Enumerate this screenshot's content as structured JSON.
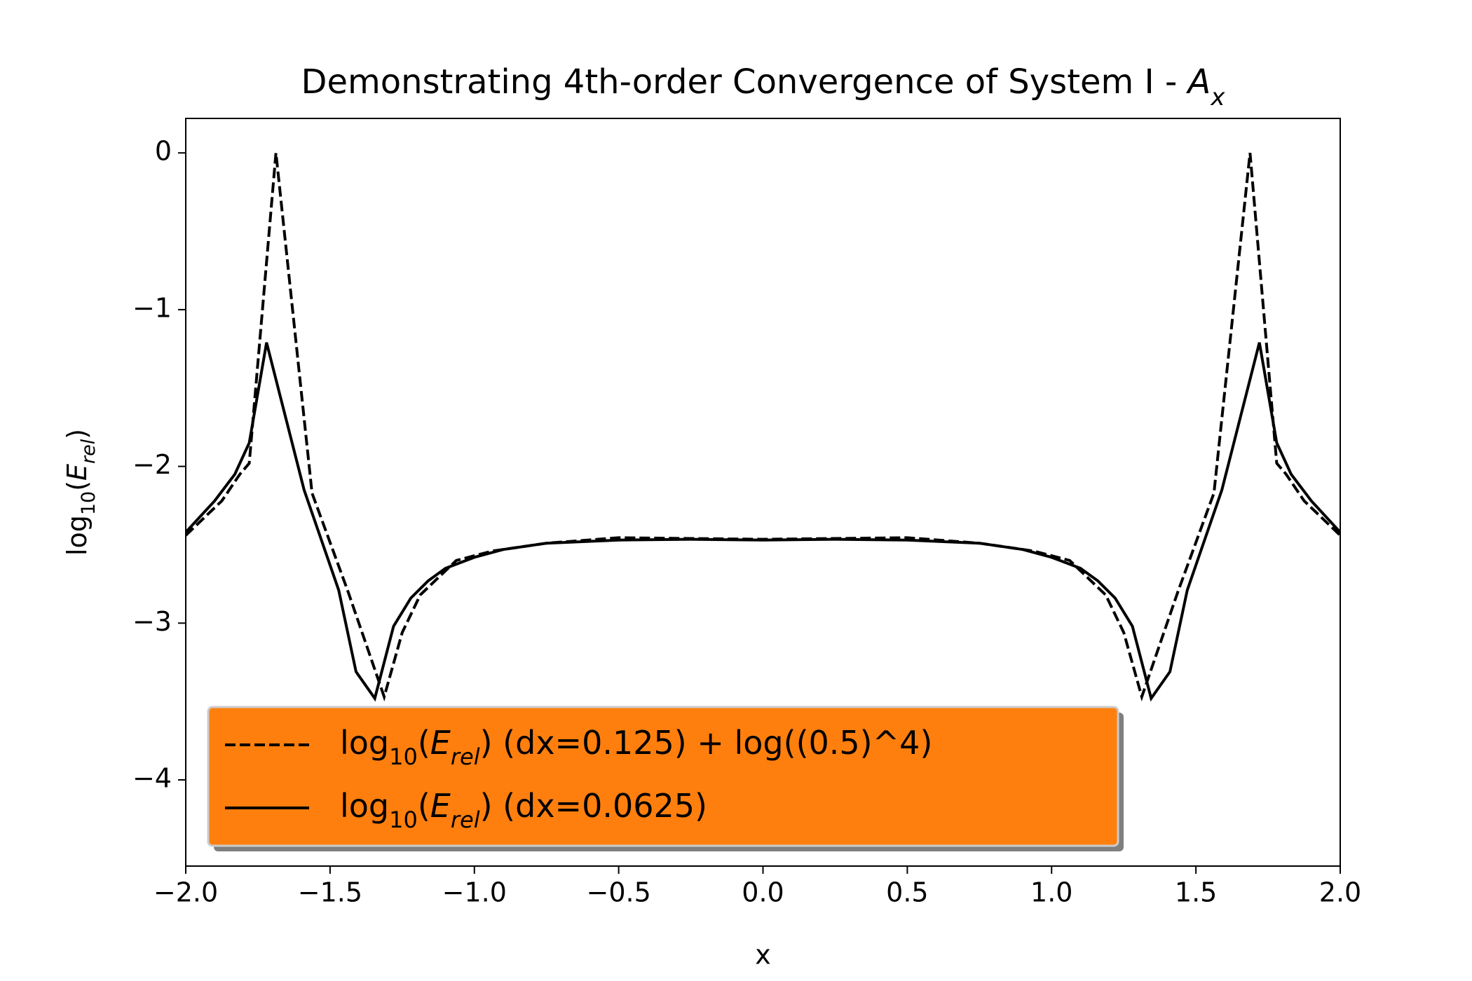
{
  "chart_data": {
    "type": "line",
    "title": [
      "Demonstrating 4th-order Convergence of System I - ",
      {
        "text": "A",
        "style": "italic"
      },
      {
        "text": "x",
        "style": "sub-italic"
      }
    ],
    "xlabel": "x",
    "ylabel": [
      "log",
      {
        "text": "10",
        "style": "sub"
      },
      "(",
      {
        "text": "E",
        "style": "italic"
      },
      {
        "text": "rel",
        "style": "sub-italic"
      },
      ")"
    ],
    "xlim": [
      -2,
      2
    ],
    "ylim": [
      -4.55,
      0.22
    ],
    "xticks": [
      {
        "value": -2.0,
        "label": "−2.0"
      },
      {
        "value": -1.5,
        "label": "−1.5"
      },
      {
        "value": -1.0,
        "label": "−1.0"
      },
      {
        "value": -0.5,
        "label": "−0.5"
      },
      {
        "value": 0,
        "label": "0.0"
      },
      {
        "value": 0.5,
        "label": "0.5"
      },
      {
        "value": 1.0,
        "label": "1.0"
      },
      {
        "value": 1.5,
        "label": "1.5"
      },
      {
        "value": 2.0,
        "label": "2.0"
      }
    ],
    "yticks": [
      0,
      {
        "value": -1,
        "label": "−1"
      },
      {
        "value": -2,
        "label": "−2"
      },
      {
        "value": -3,
        "label": "−3"
      },
      {
        "value": -4,
        "label": "−4"
      }
    ],
    "legend": "lower left",
    "legend_color": "#ff7f0e",
    "series": [
      {
        "name": [
          "log",
          {
            "text": "10",
            "style": "sub"
          },
          "(",
          {
            "text": "E",
            "style": "italic"
          },
          {
            "text": "rel",
            "style": "sub-italic"
          },
          ") (dx=0.125) + log((0.5)^4)"
        ],
        "color": "#000000",
        "dash": true,
        "x": [
          -2,
          -1.875,
          -1.8125,
          -1.78,
          -1.6875,
          -1.5625,
          -1.4375,
          -1.3125,
          -1.25,
          -1.1875,
          -1.0625,
          -0.9375,
          -0.75,
          -0.5,
          -0.25,
          0,
          0.25,
          0.5,
          0.75,
          0.9375,
          1.0625,
          1.1875,
          1.25,
          1.3125,
          1.4375,
          1.5625,
          1.6875,
          1.78,
          1.8125,
          1.875,
          2
        ],
        "values": [
          -2.44,
          -2.22,
          -2.05,
          -1.98,
          0.0,
          -2.17,
          -2.8,
          -3.47,
          -3.06,
          -2.82,
          -2.6,
          -2.54,
          -2.49,
          -2.455,
          -2.46,
          -2.465,
          -2.46,
          -2.455,
          -2.49,
          -2.54,
          -2.6,
          -2.82,
          -3.06,
          -3.47,
          -2.8,
          -2.17,
          0.0,
          -1.98,
          -2.05,
          -2.22,
          -2.44
        ]
      },
      {
        "name": [
          "log",
          {
            "text": "10",
            "style": "sub"
          },
          "(",
          {
            "text": "E",
            "style": "italic"
          },
          {
            "text": "rel",
            "style": "sub-italic"
          },
          ") (dx=0.0625)"
        ],
        "color": "#000000",
        "dash": false,
        "x": [
          -2,
          -1.9,
          -1.83,
          -1.78,
          -1.72,
          -1.59,
          -1.47,
          -1.41,
          -1.345,
          -1.28,
          -1.22,
          -1.16,
          -1.1,
          -1,
          -0.9,
          -0.75,
          -0.5,
          -0.25,
          0,
          0.25,
          0.5,
          0.75,
          0.9,
          1,
          1.1,
          1.16,
          1.22,
          1.28,
          1.345,
          1.41,
          1.47,
          1.59,
          1.72,
          1.78,
          1.83,
          1.9,
          2
        ],
        "values": [
          -2.42,
          -2.22,
          -2.05,
          -1.85,
          -1.21,
          -2.15,
          -2.79,
          -3.31,
          -3.48,
          -3.02,
          -2.84,
          -2.73,
          -2.65,
          -2.58,
          -2.53,
          -2.49,
          -2.47,
          -2.465,
          -2.47,
          -2.465,
          -2.47,
          -2.49,
          -2.53,
          -2.58,
          -2.65,
          -2.73,
          -2.84,
          -3.02,
          -3.48,
          -3.31,
          -2.79,
          -2.15,
          -1.21,
          -1.85,
          -2.05,
          -2.22,
          -2.42
        ]
      }
    ]
  }
}
